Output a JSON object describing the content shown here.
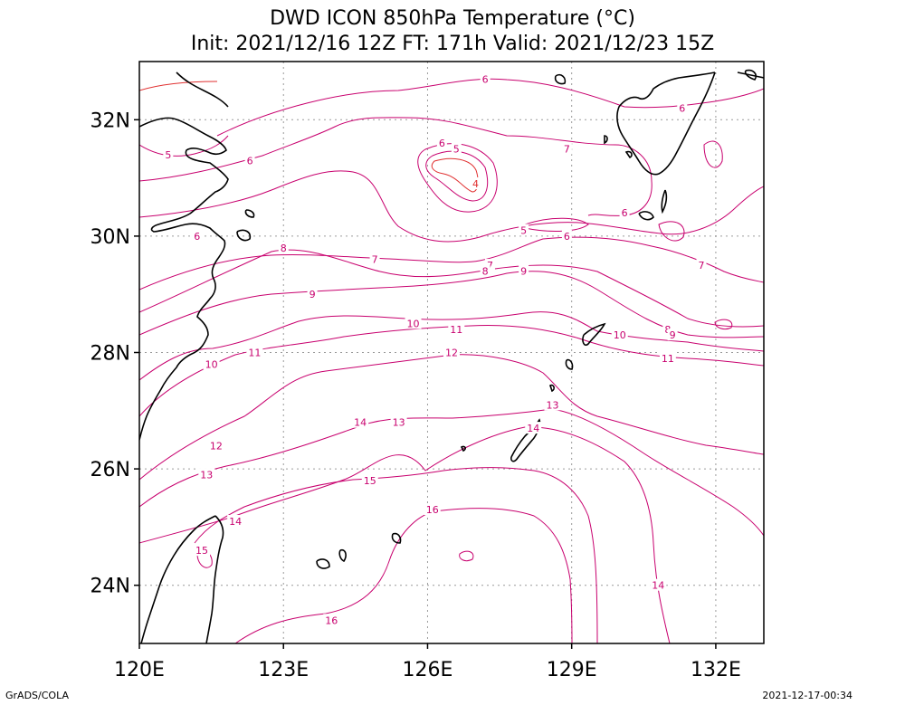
{
  "title": "DWD ICON 850hPa Temperature (°C)",
  "subtitle": "Init: 2021/12/16 12Z  FT: 171h  Valid: 2021/12/23 15Z",
  "credit_left": "GrADS/COLA",
  "credit_right": "2021-12-17-00:34",
  "colors": {
    "contour": "#c8006e",
    "contour_cold": "#e03030",
    "label": "#c8006e",
    "coast": "#000000",
    "grid": "#9a9a9a"
  },
  "map": {
    "lon_range": [
      120,
      133
    ],
    "lat_range": [
      23,
      33
    ],
    "lon_ticks": [
      {
        "value": 120,
        "label": "120E"
      },
      {
        "value": 123,
        "label": "123E"
      },
      {
        "value": 126,
        "label": "126E"
      },
      {
        "value": 129,
        "label": "129E"
      },
      {
        "value": 132,
        "label": "132E"
      }
    ],
    "lat_ticks": [
      {
        "value": 24,
        "label": "24N"
      },
      {
        "value": 26,
        "label": "26N"
      },
      {
        "value": 28,
        "label": "28N"
      },
      {
        "value": 30,
        "label": "30N"
      },
      {
        "value": 32,
        "label": "32N"
      }
    ]
  },
  "contour_labels": [
    {
      "text": "6",
      "lon": 127.2,
      "lat": 32.7
    },
    {
      "text": "6",
      "lon": 131.3,
      "lat": 32.2
    },
    {
      "text": "5",
      "lon": 120.6,
      "lat": 31.4
    },
    {
      "text": "6",
      "lon": 122.3,
      "lat": 31.3
    },
    {
      "text": "6",
      "lon": 126.3,
      "lat": 31.6
    },
    {
      "text": "5",
      "lon": 126.6,
      "lat": 31.5
    },
    {
      "text": "7",
      "lon": 128.9,
      "lat": 31.5
    },
    {
      "text": "4",
      "lon": 127.0,
      "lat": 30.9
    },
    {
      "text": "6",
      "lon": 130.1,
      "lat": 30.4
    },
    {
      "text": "6",
      "lon": 121.2,
      "lat": 30.0
    },
    {
      "text": "5",
      "lon": 128.0,
      "lat": 30.1
    },
    {
      "text": "6",
      "lon": 128.9,
      "lat": 30.0
    },
    {
      "text": "8",
      "lon": 123.0,
      "lat": 29.8
    },
    {
      "text": "7",
      "lon": 124.9,
      "lat": 29.6
    },
    {
      "text": "7",
      "lon": 127.3,
      "lat": 29.5
    },
    {
      "text": "8",
      "lon": 127.2,
      "lat": 29.4
    },
    {
      "text": "9",
      "lon": 128.0,
      "lat": 29.4
    },
    {
      "text": "7",
      "lon": 131.7,
      "lat": 29.5
    },
    {
      "text": "9",
      "lon": 123.6,
      "lat": 29.0
    },
    {
      "text": "10",
      "lon": 125.7,
      "lat": 28.5
    },
    {
      "text": "11",
      "lon": 126.6,
      "lat": 28.4
    },
    {
      "text": "8",
      "lon": 131.0,
      "lat": 28.4
    },
    {
      "text": "10",
      "lon": 130.0,
      "lat": 28.3
    },
    {
      "text": "9",
      "lon": 131.1,
      "lat": 28.3
    },
    {
      "text": "11",
      "lon": 122.4,
      "lat": 28.0
    },
    {
      "text": "12",
      "lon": 126.5,
      "lat": 28.0
    },
    {
      "text": "10",
      "lon": 121.5,
      "lat": 27.8
    },
    {
      "text": "11",
      "lon": 131.0,
      "lat": 27.9
    },
    {
      "text": "13",
      "lon": 128.6,
      "lat": 27.1
    },
    {
      "text": "14",
      "lon": 124.6,
      "lat": 26.8
    },
    {
      "text": "13",
      "lon": 125.4,
      "lat": 26.8
    },
    {
      "text": "14",
      "lon": 128.2,
      "lat": 26.7
    },
    {
      "text": "12",
      "lon": 121.6,
      "lat": 26.4
    },
    {
      "text": "13",
      "lon": 121.4,
      "lat": 25.9
    },
    {
      "text": "15",
      "lon": 124.8,
      "lat": 25.8
    },
    {
      "text": "16",
      "lon": 126.1,
      "lat": 25.3
    },
    {
      "text": "14",
      "lon": 122.0,
      "lat": 25.1
    },
    {
      "text": "15",
      "lon": 121.3,
      "lat": 24.6
    },
    {
      "text": "14",
      "lon": 130.8,
      "lat": 24.0
    },
    {
      "text": "16",
      "lon": 124.0,
      "lat": 23.4
    }
  ]
}
